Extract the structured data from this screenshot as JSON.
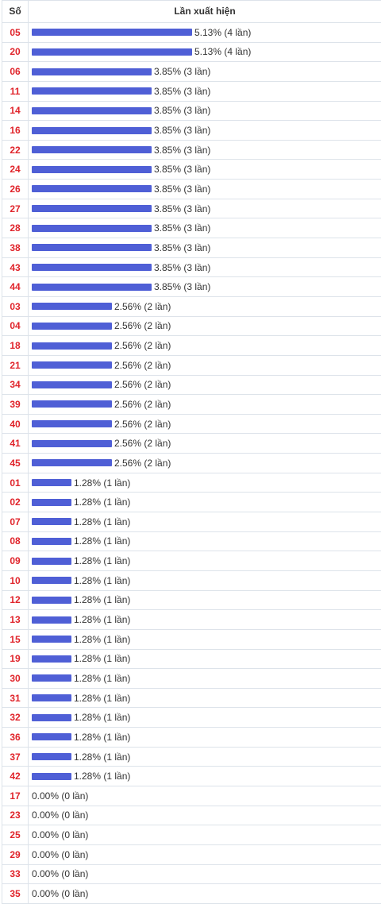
{
  "header": {
    "col_number": "Số",
    "col_freq": "Lần xuất hiện"
  },
  "chart_data": {
    "type": "bar",
    "orientation": "horizontal",
    "bar_color": "#4f5fd6",
    "number_color": "#e0242b",
    "rows": [
      {
        "number": "05",
        "percent": 5.13,
        "label": "5.13% (4 lần)"
      },
      {
        "number": "20",
        "percent": 5.13,
        "label": "5.13% (4 lần)"
      },
      {
        "number": "06",
        "percent": 3.85,
        "label": "3.85% (3 lần)"
      },
      {
        "number": "11",
        "percent": 3.85,
        "label": "3.85% (3 lần)"
      },
      {
        "number": "14",
        "percent": 3.85,
        "label": "3.85% (3 lần)"
      },
      {
        "number": "16",
        "percent": 3.85,
        "label": "3.85% (3 lần)"
      },
      {
        "number": "22",
        "percent": 3.85,
        "label": "3.85% (3 lần)"
      },
      {
        "number": "24",
        "percent": 3.85,
        "label": "3.85% (3 lần)"
      },
      {
        "number": "26",
        "percent": 3.85,
        "label": "3.85% (3 lần)"
      },
      {
        "number": "27",
        "percent": 3.85,
        "label": "3.85% (3 lần)"
      },
      {
        "number": "28",
        "percent": 3.85,
        "label": "3.85% (3 lần)"
      },
      {
        "number": "38",
        "percent": 3.85,
        "label": "3.85% (3 lần)"
      },
      {
        "number": "43",
        "percent": 3.85,
        "label": "3.85% (3 lần)"
      },
      {
        "number": "44",
        "percent": 3.85,
        "label": "3.85% (3 lần)"
      },
      {
        "number": "03",
        "percent": 2.56,
        "label": "2.56% (2 lần)"
      },
      {
        "number": "04",
        "percent": 2.56,
        "label": "2.56% (2 lần)"
      },
      {
        "number": "18",
        "percent": 2.56,
        "label": "2.56% (2 lần)"
      },
      {
        "number": "21",
        "percent": 2.56,
        "label": "2.56% (2 lần)"
      },
      {
        "number": "34",
        "percent": 2.56,
        "label": "2.56% (2 lần)"
      },
      {
        "number": "39",
        "percent": 2.56,
        "label": "2.56% (2 lần)"
      },
      {
        "number": "40",
        "percent": 2.56,
        "label": "2.56% (2 lần)"
      },
      {
        "number": "41",
        "percent": 2.56,
        "label": "2.56% (2 lần)"
      },
      {
        "number": "45",
        "percent": 2.56,
        "label": "2.56% (2 lần)"
      },
      {
        "number": "01",
        "percent": 1.28,
        "label": "1.28% (1 lần)"
      },
      {
        "number": "02",
        "percent": 1.28,
        "label": "1.28% (1 lần)"
      },
      {
        "number": "07",
        "percent": 1.28,
        "label": "1.28% (1 lần)"
      },
      {
        "number": "08",
        "percent": 1.28,
        "label": "1.28% (1 lần)"
      },
      {
        "number": "09",
        "percent": 1.28,
        "label": "1.28% (1 lần)"
      },
      {
        "number": "10",
        "percent": 1.28,
        "label": "1.28% (1 lần)"
      },
      {
        "number": "12",
        "percent": 1.28,
        "label": "1.28% (1 lần)"
      },
      {
        "number": "13",
        "percent": 1.28,
        "label": "1.28% (1 lần)"
      },
      {
        "number": "15",
        "percent": 1.28,
        "label": "1.28% (1 lần)"
      },
      {
        "number": "19",
        "percent": 1.28,
        "label": "1.28% (1 lần)"
      },
      {
        "number": "30",
        "percent": 1.28,
        "label": "1.28% (1 lần)"
      },
      {
        "number": "31",
        "percent": 1.28,
        "label": "1.28% (1 lần)"
      },
      {
        "number": "32",
        "percent": 1.28,
        "label": "1.28% (1 lần)"
      },
      {
        "number": "36",
        "percent": 1.28,
        "label": "1.28% (1 lần)"
      },
      {
        "number": "37",
        "percent": 1.28,
        "label": "1.28% (1 lần)"
      },
      {
        "number": "42",
        "percent": 1.28,
        "label": "1.28% (1 lần)"
      },
      {
        "number": "17",
        "percent": 0.0,
        "label": "0.00% (0 lần)"
      },
      {
        "number": "23",
        "percent": 0.0,
        "label": "0.00% (0 lần)"
      },
      {
        "number": "25",
        "percent": 0.0,
        "label": "0.00% (0 lần)"
      },
      {
        "number": "29",
        "percent": 0.0,
        "label": "0.00% (0 lần)"
      },
      {
        "number": "33",
        "percent": 0.0,
        "label": "0.00% (0 lần)"
      },
      {
        "number": "35",
        "percent": 0.0,
        "label": "0.00% (0 lần)"
      }
    ]
  }
}
